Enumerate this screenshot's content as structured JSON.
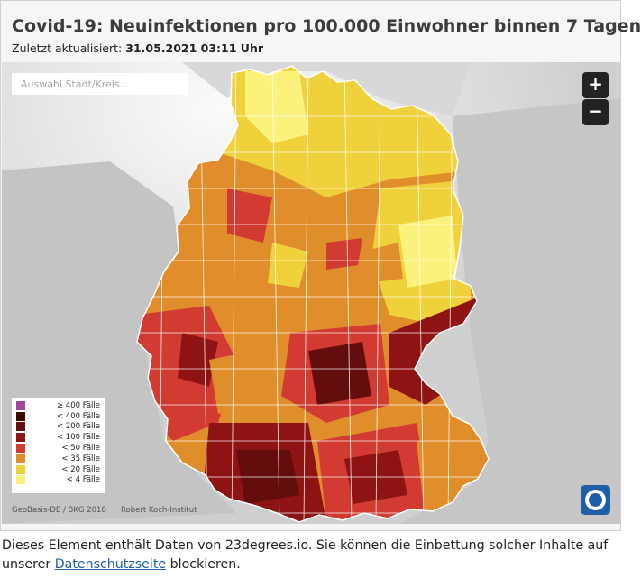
{
  "header": {
    "title": "Covid-19: Neuinfektionen pro 100.000 Einwohner binnen 7 Tagen",
    "updated_label": "Zuletzt aktualisiert:",
    "updated_value": "31.05.2021 03:11 Uhr"
  },
  "search": {
    "placeholder": "Auswahl Stadt/Kreis..."
  },
  "zoom": {
    "in_label": "+",
    "out_label": "−"
  },
  "legend": {
    "items": [
      {
        "label": "≥ 400 Fälle",
        "color": "#a0479a"
      },
      {
        "label": "< 400 Fälle",
        "color": "#3b0906"
      },
      {
        "label": "< 200 Fälle",
        "color": "#640d0d"
      },
      {
        "label": "< 100 Fälle",
        "color": "#8e1414"
      },
      {
        "label": "< 50 Fälle",
        "color": "#d13b32"
      },
      {
        "label": "< 35 Fälle",
        "color": "#e08e2c"
      },
      {
        "label": "< 20 Fälle",
        "color": "#efd13c"
      },
      {
        "label": "< 4 Fälle",
        "color": "#faf27c"
      }
    ]
  },
  "credits": {
    "source1": "GeoBasis-DE / BKG 2018",
    "source2": "Robert Koch-Institut"
  },
  "logo": {
    "icon": "tagesschau-logo-icon"
  },
  "notice": {
    "text_before": "Dieses Element enthält Daten von 23degrees.io. Sie können die Einbettung solcher Inhalte auf unserer ",
    "link_text": "Datenschutzseite",
    "text_after": " blockieren."
  },
  "colors": {
    "land": "#bdbdbd",
    "sea": "#f2f2f2",
    "border": "#ffffff"
  }
}
